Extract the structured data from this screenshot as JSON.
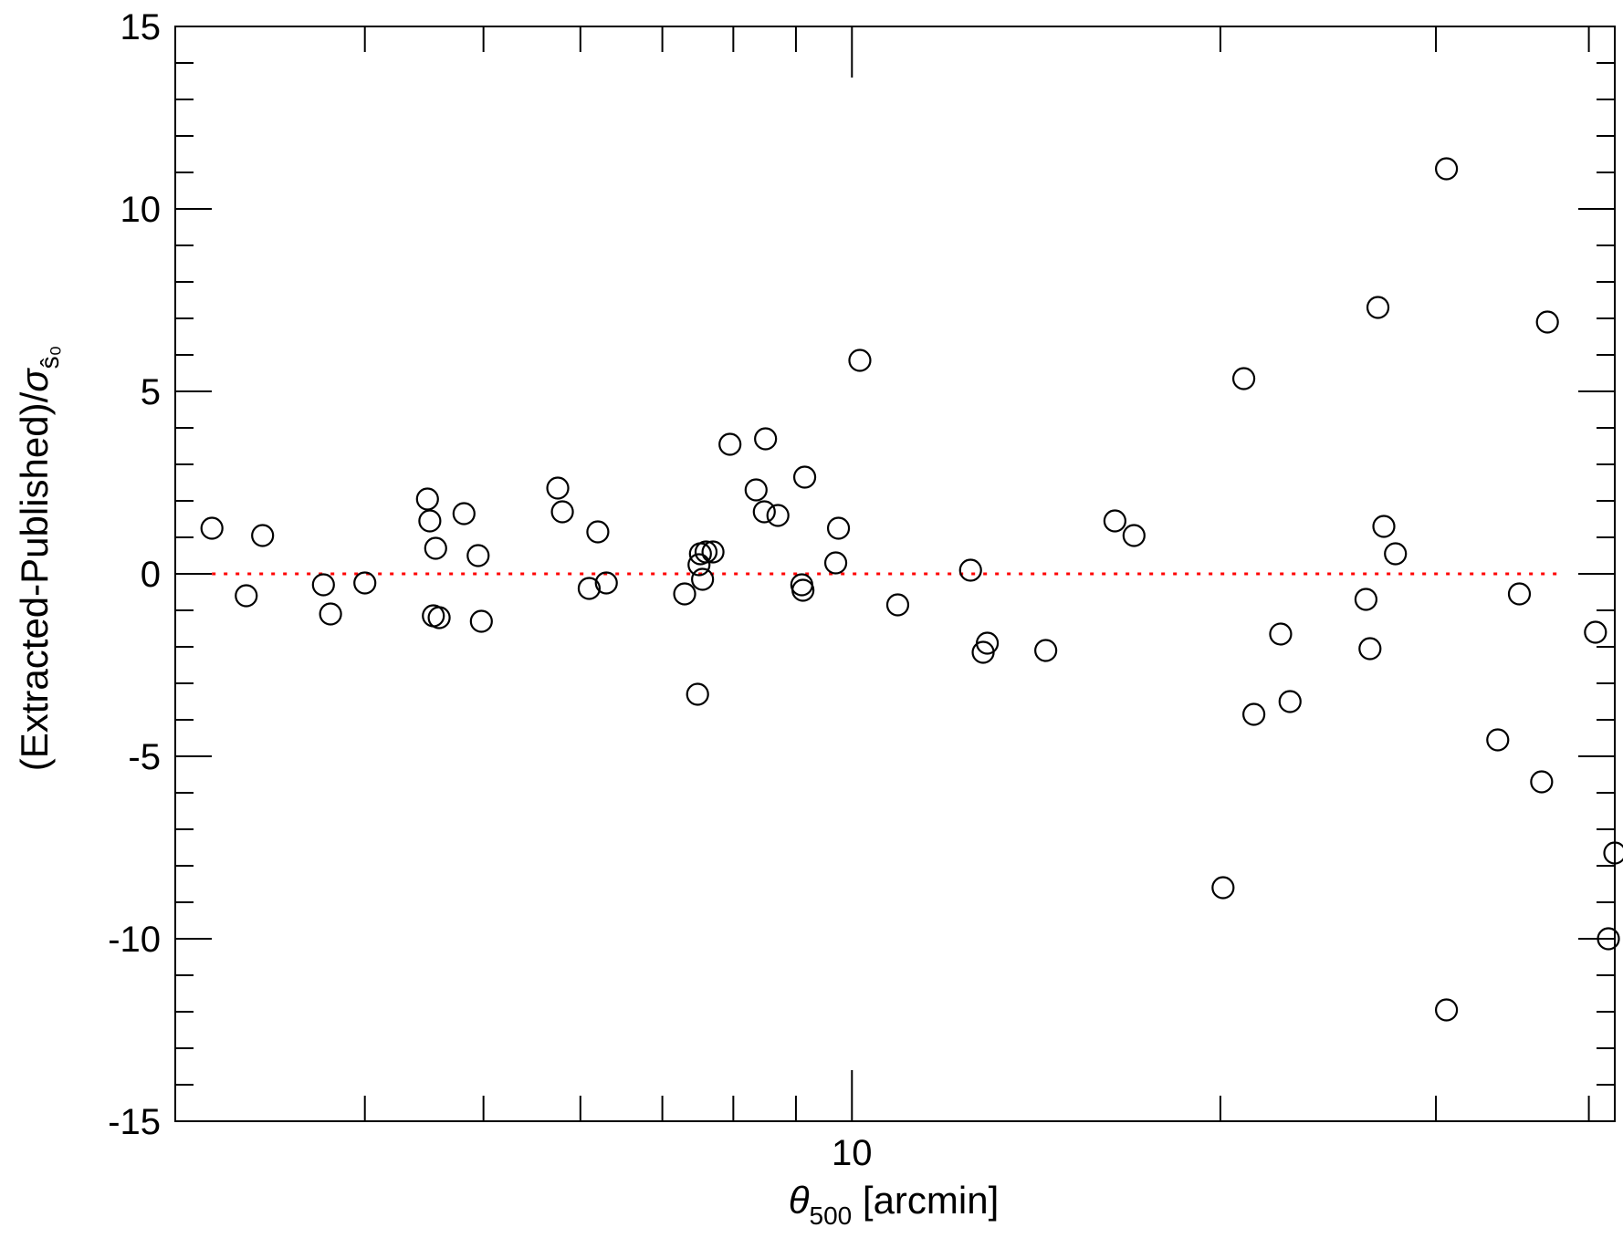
{
  "chart_data": {
    "type": "scatter",
    "xlabel": {
      "symbol": "θ",
      "subscript": "500",
      "rest": " [arcmin]"
    },
    "ylabel": {
      "text": "(Extracted-Published)/",
      "symbol": "σ",
      "subscript": "ŝ₀"
    },
    "x_scale": "log",
    "xlim": [
      2.8,
      42
    ],
    "ylim": [
      -15,
      15
    ],
    "x_ticks": [
      {
        "value": 4,
        "label": ""
      },
      {
        "value": 5,
        "label": ""
      },
      {
        "value": 6,
        "label": ""
      },
      {
        "value": 7,
        "label": ""
      },
      {
        "value": 8,
        "label": ""
      },
      {
        "value": 9,
        "label": ""
      },
      {
        "value": 10,
        "label": "10"
      },
      {
        "value": 20,
        "label": ""
      },
      {
        "value": 30,
        "label": ""
      },
      {
        "value": 40,
        "label": ""
      }
    ],
    "y_ticks": [
      {
        "value": -15,
        "label": "-15"
      },
      {
        "value": -10,
        "label": "-10"
      },
      {
        "value": -5,
        "label": "-5"
      },
      {
        "value": 0,
        "label": "0"
      },
      {
        "value": 5,
        "label": "5"
      },
      {
        "value": 10,
        "label": "10"
      },
      {
        "value": 15,
        "label": "15"
      }
    ],
    "y_minor_step": 1,
    "grid": false,
    "legend": "none",
    "reference_line": {
      "y": 0,
      "x_from": 3.0,
      "x_to": 37.7,
      "style": "dotted",
      "color": "#ff0000"
    },
    "marker": {
      "shape": "open-circle",
      "color": "#000000"
    },
    "series": [
      {
        "points": [
          {
            "x": 3.0,
            "y": 1.25
          },
          {
            "x": 3.2,
            "y": -0.6
          },
          {
            "x": 3.3,
            "y": 1.05
          },
          {
            "x": 3.7,
            "y": -0.3
          },
          {
            "x": 3.75,
            "y": -1.1
          },
          {
            "x": 4.0,
            "y": -0.25
          },
          {
            "x": 4.5,
            "y": 2.05
          },
          {
            "x": 4.52,
            "y": 1.45
          },
          {
            "x": 4.57,
            "y": 0.7
          },
          {
            "x": 4.55,
            "y": -1.15
          },
          {
            "x": 4.6,
            "y": -1.2
          },
          {
            "x": 4.82,
            "y": 1.65
          },
          {
            "x": 4.95,
            "y": 0.5
          },
          {
            "x": 4.98,
            "y": -1.3
          },
          {
            "x": 5.75,
            "y": 2.35
          },
          {
            "x": 5.8,
            "y": 1.7
          },
          {
            "x": 6.2,
            "y": 1.15
          },
          {
            "x": 6.1,
            "y": -0.4
          },
          {
            "x": 6.3,
            "y": -0.25
          },
          {
            "x": 7.3,
            "y": -0.55
          },
          {
            "x": 7.5,
            "y": 0.25
          },
          {
            "x": 7.52,
            "y": 0.55
          },
          {
            "x": 7.55,
            "y": -0.15
          },
          {
            "x": 7.6,
            "y": 0.6
          },
          {
            "x": 7.7,
            "y": 0.6
          },
          {
            "x": 7.48,
            "y": -3.3
          },
          {
            "x": 7.95,
            "y": 3.55
          },
          {
            "x": 8.35,
            "y": 2.3
          },
          {
            "x": 8.5,
            "y": 3.7
          },
          {
            "x": 8.48,
            "y": 1.7
          },
          {
            "x": 8.7,
            "y": 1.6
          },
          {
            "x": 9.1,
            "y": -0.3
          },
          {
            "x": 9.12,
            "y": -0.45
          },
          {
            "x": 9.15,
            "y": 2.65
          },
          {
            "x": 9.75,
            "y": 1.25
          },
          {
            "x": 9.7,
            "y": 0.3
          },
          {
            "x": 10.15,
            "y": 5.85
          },
          {
            "x": 10.9,
            "y": -0.85
          },
          {
            "x": 12.5,
            "y": 0.1
          },
          {
            "x": 12.8,
            "y": -2.15
          },
          {
            "x": 12.9,
            "y": -1.9
          },
          {
            "x": 14.4,
            "y": -2.1
          },
          {
            "x": 16.4,
            "y": 1.45
          },
          {
            "x": 17.0,
            "y": 1.05
          },
          {
            "x": 20.1,
            "y": -8.6
          },
          {
            "x": 20.9,
            "y": 5.35
          },
          {
            "x": 21.3,
            "y": -3.85
          },
          {
            "x": 22.4,
            "y": -1.65
          },
          {
            "x": 22.8,
            "y": -3.5
          },
          {
            "x": 26.3,
            "y": -0.7
          },
          {
            "x": 26.5,
            "y": -2.05
          },
          {
            "x": 26.9,
            "y": 7.3
          },
          {
            "x": 27.2,
            "y": 1.3
          },
          {
            "x": 27.8,
            "y": 0.55
          },
          {
            "x": 30.6,
            "y": 11.1
          },
          {
            "x": 30.6,
            "y": -11.95
          },
          {
            "x": 33.7,
            "y": -4.55
          },
          {
            "x": 35.1,
            "y": -0.55
          },
          {
            "x": 36.6,
            "y": -5.7
          },
          {
            "x": 37.0,
            "y": 6.9
          },
          {
            "x": 40.5,
            "y": -1.6
          },
          {
            "x": 41.5,
            "y": -10.0
          },
          {
            "x": 46.8,
            "y": -7.65
          }
        ]
      }
    ]
  }
}
